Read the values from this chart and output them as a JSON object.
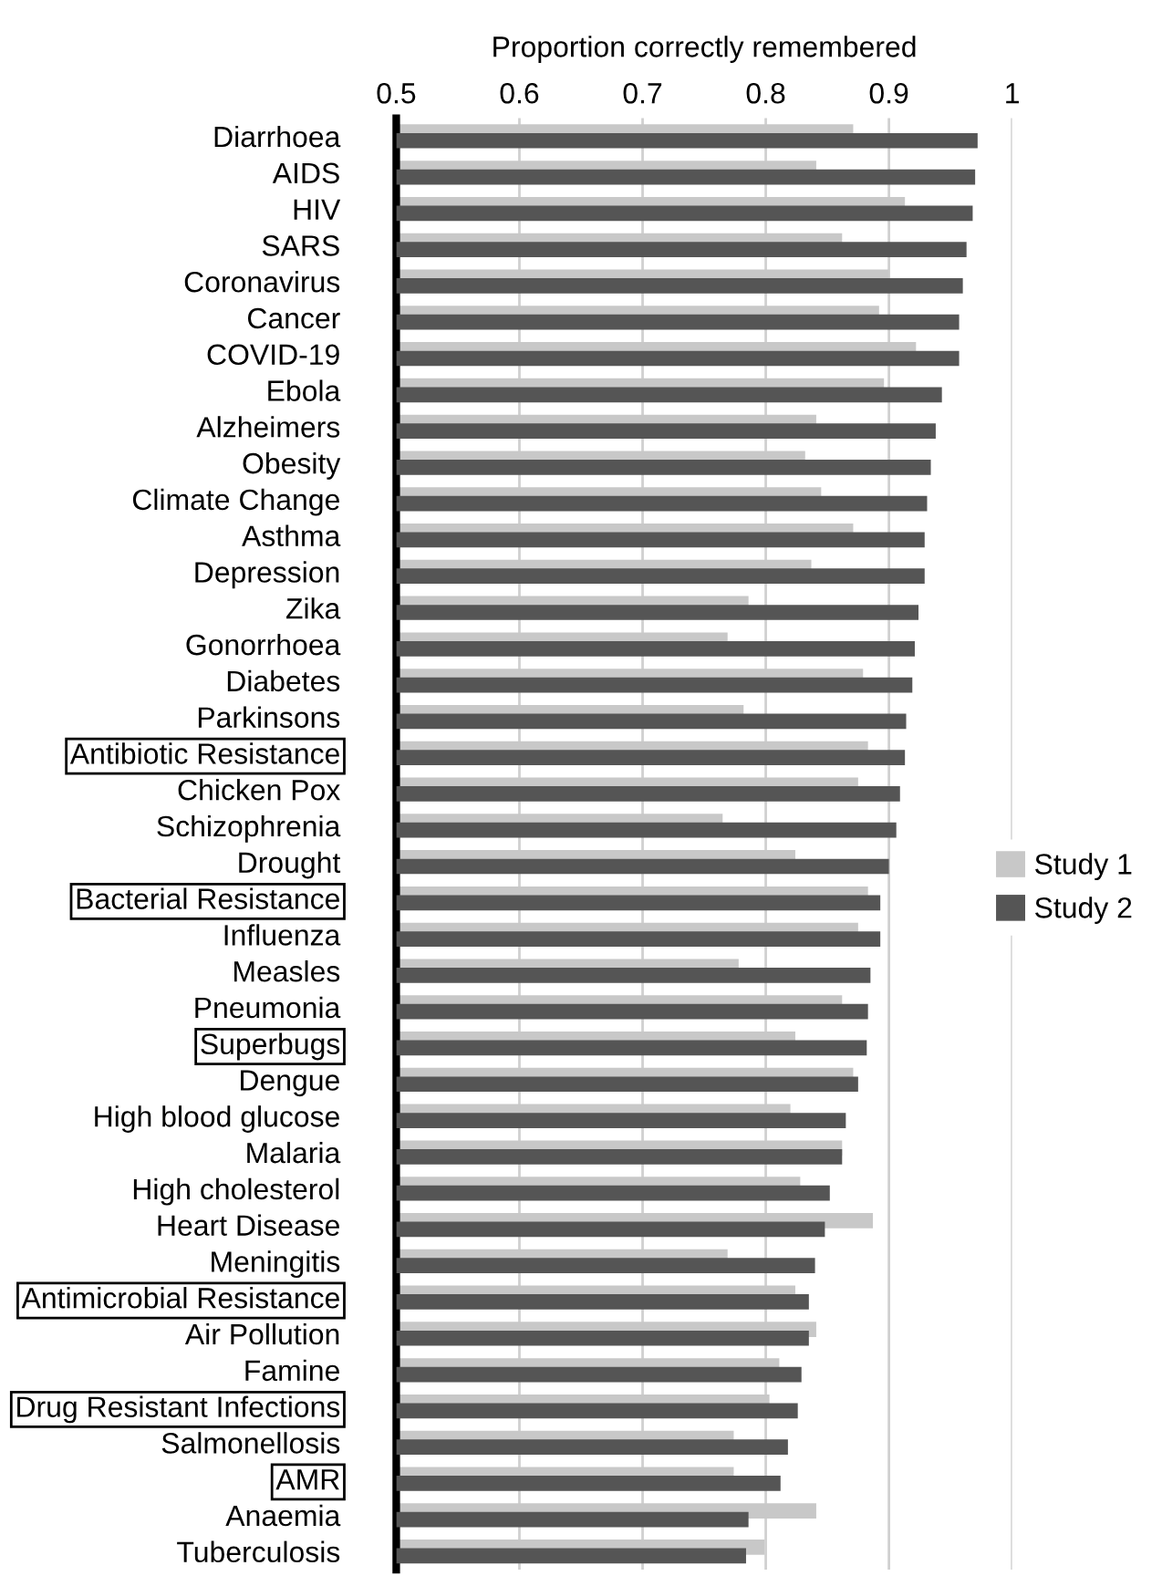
{
  "chart_data": {
    "type": "bar",
    "orientation": "horizontal",
    "xlabel": "Proportion correctly remembered",
    "categories": [
      "Diarrhoea",
      "AIDS",
      "HIV",
      "SARS",
      "Coronavirus",
      "Cancer",
      "COVID-19",
      "Ebola",
      "Alzheimers",
      "Obesity",
      "Climate Change",
      "Asthma",
      "Depression",
      "Zika",
      "Gonorrhoea",
      "Diabetes",
      "Parkinsons",
      "Antibiotic Resistance",
      "Chicken Pox",
      "Schizophrenia",
      "Drought",
      "Bacterial Resistance",
      "Influenza",
      "Measles",
      "Pneumonia",
      "Superbugs",
      "Dengue",
      "High blood glucose",
      "Malaria",
      "High cholesterol",
      "Heart Disease",
      "Meningitis",
      "Antimicrobial Resistance",
      "Air Pollution",
      "Famine",
      "Drug Resistant Infections",
      "Salmonellosis",
      "AMR",
      "Anaemia",
      "Tuberculosis"
    ],
    "series": [
      {
        "name": "Study 1",
        "color": "#c8c8c8",
        "values": [
          0.871,
          0.841,
          0.913,
          0.862,
          0.9,
          0.892,
          0.922,
          0.896,
          0.841,
          0.832,
          0.845,
          0.871,
          0.837,
          0.786,
          0.769,
          0.879,
          0.782,
          0.883,
          0.875,
          0.765,
          0.824,
          0.883,
          0.875,
          0.778,
          0.862,
          0.824,
          0.871,
          0.82,
          0.862,
          0.828,
          0.887,
          0.769,
          0.824,
          0.841,
          0.811,
          0.803,
          0.774,
          0.774,
          0.841,
          0.799
        ]
      },
      {
        "name": "Study 2",
        "color": "#555555",
        "values": [
          0.972,
          0.97,
          0.968,
          0.963,
          0.96,
          0.957,
          0.957,
          0.943,
          0.938,
          0.934,
          0.931,
          0.929,
          0.929,
          0.924,
          0.921,
          0.919,
          0.914,
          0.913,
          0.909,
          0.906,
          0.9,
          0.893,
          0.893,
          0.885,
          0.883,
          0.882,
          0.875,
          0.865,
          0.862,
          0.852,
          0.848,
          0.84,
          0.835,
          0.835,
          0.829,
          0.826,
          0.818,
          0.812,
          0.786,
          0.784
        ]
      }
    ],
    "xlim": [
      0.5,
      1
    ],
    "xticks": [
      {
        "value": 0.5,
        "label": "0.5"
      },
      {
        "value": 0.6,
        "label": "0.6"
      },
      {
        "value": 0.7,
        "label": "0.7"
      },
      {
        "value": 0.8,
        "label": "0.8"
      },
      {
        "value": 0.9,
        "label": "0.9"
      },
      {
        "value": 1,
        "label": "1"
      }
    ],
    "grid": "x",
    "legend": "right"
  }
}
